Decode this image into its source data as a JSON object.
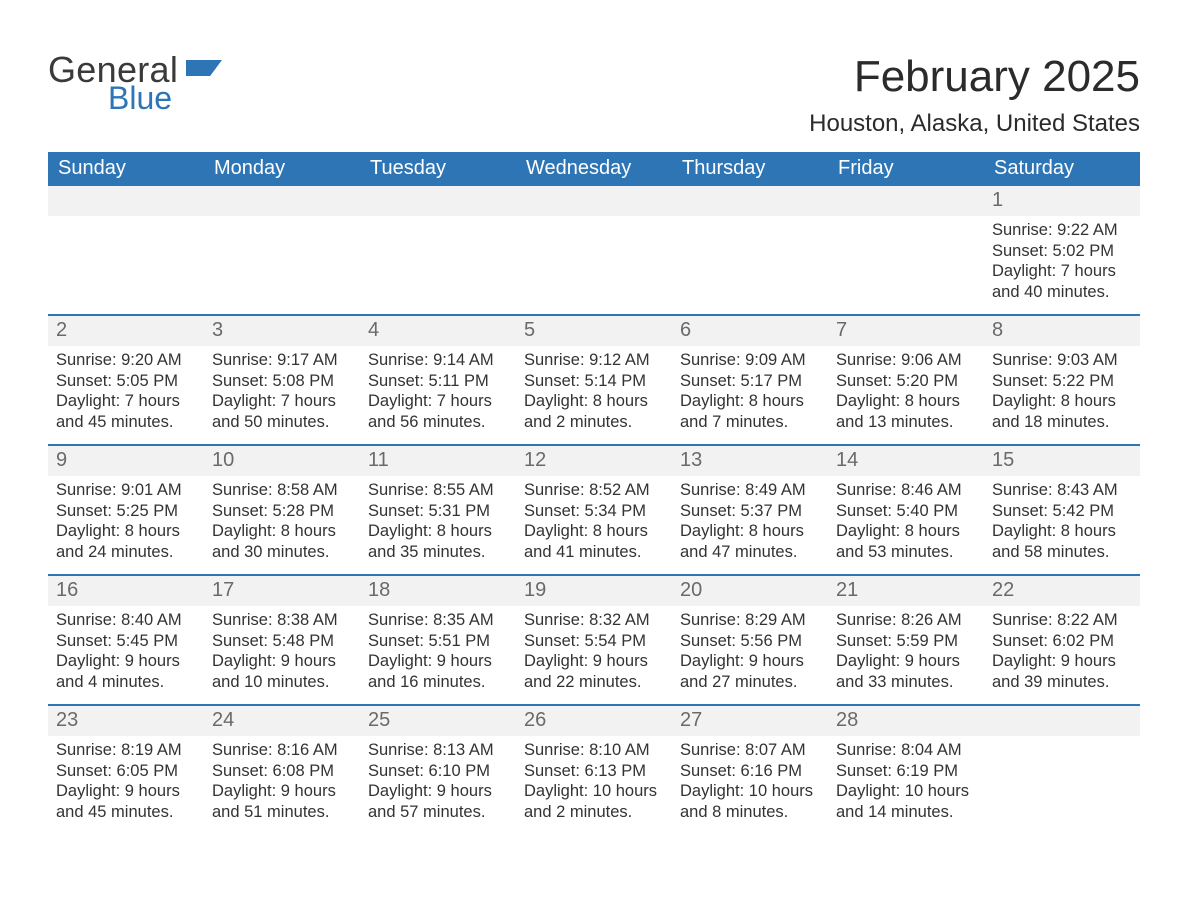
{
  "brand": {
    "word1": "General",
    "word2": "Blue",
    "flag_color": "#2e75b6",
    "word1_color": "#3a3a3a",
    "word2_color": "#2e75b6"
  },
  "title": {
    "month": "February 2025",
    "location": "Houston, Alaska, United States"
  },
  "colors": {
    "header_bg": "#2e75b6",
    "header_text": "#ffffff",
    "strip_bg": "#f2f2f2",
    "grid_line": "#2e75b6",
    "body_text": "#333333",
    "page_bg": "#ffffff"
  },
  "typography": {
    "month_title_fontsize": 44,
    "location_fontsize": 24,
    "weekday_fontsize": 20,
    "daynum_fontsize": 20,
    "body_fontsize": 16.5
  },
  "weekdays": [
    "Sunday",
    "Monday",
    "Tuesday",
    "Wednesday",
    "Thursday",
    "Friday",
    "Saturday"
  ],
  "labels": {
    "sunrise": "Sunrise",
    "sunset": "Sunset",
    "daylight": "Daylight"
  },
  "weeks": [
    [
      null,
      null,
      null,
      null,
      null,
      null,
      {
        "n": "1",
        "sunrise": "9:22 AM",
        "sunset": "5:02 PM",
        "daylight": "7 hours and 40 minutes."
      }
    ],
    [
      {
        "n": "2",
        "sunrise": "9:20 AM",
        "sunset": "5:05 PM",
        "daylight": "7 hours and 45 minutes."
      },
      {
        "n": "3",
        "sunrise": "9:17 AM",
        "sunset": "5:08 PM",
        "daylight": "7 hours and 50 minutes."
      },
      {
        "n": "4",
        "sunrise": "9:14 AM",
        "sunset": "5:11 PM",
        "daylight": "7 hours and 56 minutes."
      },
      {
        "n": "5",
        "sunrise": "9:12 AM",
        "sunset": "5:14 PM",
        "daylight": "8 hours and 2 minutes."
      },
      {
        "n": "6",
        "sunrise": "9:09 AM",
        "sunset": "5:17 PM",
        "daylight": "8 hours and 7 minutes."
      },
      {
        "n": "7",
        "sunrise": "9:06 AM",
        "sunset": "5:20 PM",
        "daylight": "8 hours and 13 minutes."
      },
      {
        "n": "8",
        "sunrise": "9:03 AM",
        "sunset": "5:22 PM",
        "daylight": "8 hours and 18 minutes."
      }
    ],
    [
      {
        "n": "9",
        "sunrise": "9:01 AM",
        "sunset": "5:25 PM",
        "daylight": "8 hours and 24 minutes."
      },
      {
        "n": "10",
        "sunrise": "8:58 AM",
        "sunset": "5:28 PM",
        "daylight": "8 hours and 30 minutes."
      },
      {
        "n": "11",
        "sunrise": "8:55 AM",
        "sunset": "5:31 PM",
        "daylight": "8 hours and 35 minutes."
      },
      {
        "n": "12",
        "sunrise": "8:52 AM",
        "sunset": "5:34 PM",
        "daylight": "8 hours and 41 minutes."
      },
      {
        "n": "13",
        "sunrise": "8:49 AM",
        "sunset": "5:37 PM",
        "daylight": "8 hours and 47 minutes."
      },
      {
        "n": "14",
        "sunrise": "8:46 AM",
        "sunset": "5:40 PM",
        "daylight": "8 hours and 53 minutes."
      },
      {
        "n": "15",
        "sunrise": "8:43 AM",
        "sunset": "5:42 PM",
        "daylight": "8 hours and 58 minutes."
      }
    ],
    [
      {
        "n": "16",
        "sunrise": "8:40 AM",
        "sunset": "5:45 PM",
        "daylight": "9 hours and 4 minutes."
      },
      {
        "n": "17",
        "sunrise": "8:38 AM",
        "sunset": "5:48 PM",
        "daylight": "9 hours and 10 minutes."
      },
      {
        "n": "18",
        "sunrise": "8:35 AM",
        "sunset": "5:51 PM",
        "daylight": "9 hours and 16 minutes."
      },
      {
        "n": "19",
        "sunrise": "8:32 AM",
        "sunset": "5:54 PM",
        "daylight": "9 hours and 22 minutes."
      },
      {
        "n": "20",
        "sunrise": "8:29 AM",
        "sunset": "5:56 PM",
        "daylight": "9 hours and 27 minutes."
      },
      {
        "n": "21",
        "sunrise": "8:26 AM",
        "sunset": "5:59 PM",
        "daylight": "9 hours and 33 minutes."
      },
      {
        "n": "22",
        "sunrise": "8:22 AM",
        "sunset": "6:02 PM",
        "daylight": "9 hours and 39 minutes."
      }
    ],
    [
      {
        "n": "23",
        "sunrise": "8:19 AM",
        "sunset": "6:05 PM",
        "daylight": "9 hours and 45 minutes."
      },
      {
        "n": "24",
        "sunrise": "8:16 AM",
        "sunset": "6:08 PM",
        "daylight": "9 hours and 51 minutes."
      },
      {
        "n": "25",
        "sunrise": "8:13 AM",
        "sunset": "6:10 PM",
        "daylight": "9 hours and 57 minutes."
      },
      {
        "n": "26",
        "sunrise": "8:10 AM",
        "sunset": "6:13 PM",
        "daylight": "10 hours and 2 minutes."
      },
      {
        "n": "27",
        "sunrise": "8:07 AM",
        "sunset": "6:16 PM",
        "daylight": "10 hours and 8 minutes."
      },
      {
        "n": "28",
        "sunrise": "8:04 AM",
        "sunset": "6:19 PM",
        "daylight": "10 hours and 14 minutes."
      },
      null
    ]
  ]
}
